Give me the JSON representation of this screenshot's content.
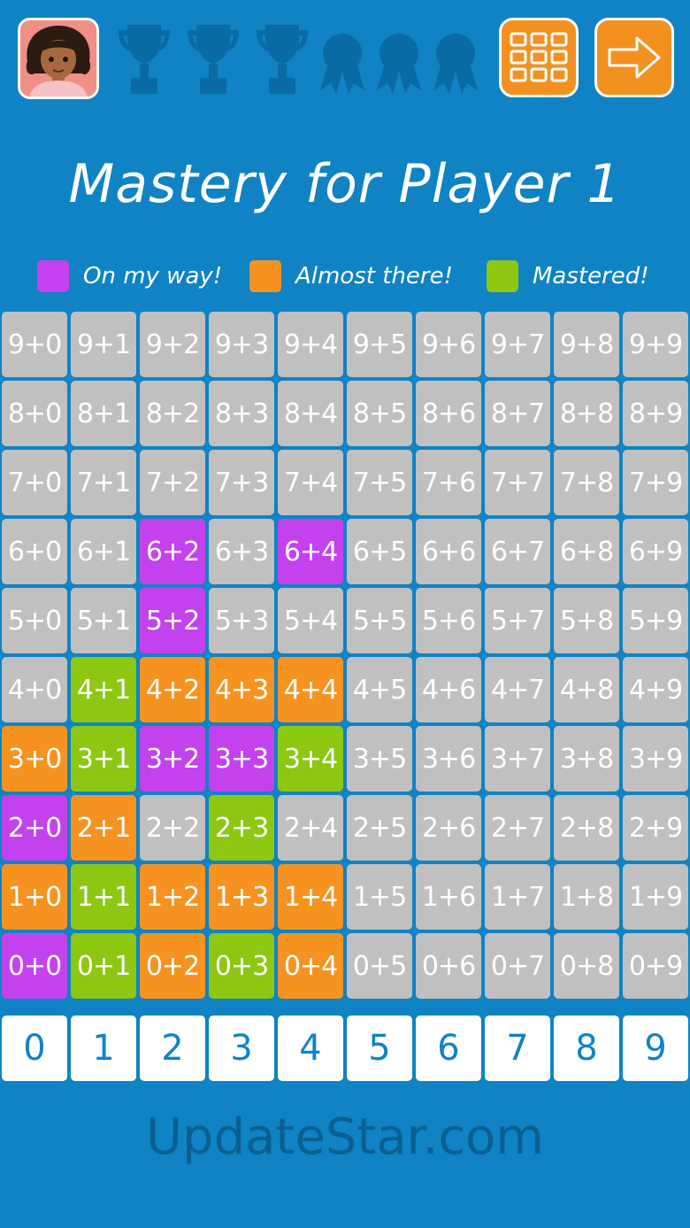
{
  "header": {
    "avatar_icon": "player-avatar-girl",
    "trophies": [
      "trophy-icon",
      "trophy-icon",
      "trophy-icon"
    ],
    "ribbons": [
      "ribbon-icon",
      "ribbon-icon",
      "ribbon-icon"
    ],
    "grid_button_icon": "grid-menu-icon",
    "next_button_icon": "arrow-right-icon"
  },
  "title": "Mastery for Player 1",
  "legend": {
    "on_my_way": {
      "label": "On my way!",
      "color": "#c342ee"
    },
    "almost_there": {
      "label": "Almost there!",
      "color": "#f69320"
    },
    "mastered": {
      "label": "Mastered!",
      "color": "#8dc711"
    }
  },
  "colors": {
    "background": "#0f83c4",
    "not_started": "#c0c0c0",
    "number_tile": "#ffffff",
    "number_text": "#0f83c4"
  },
  "grid": {
    "rows": [
      [
        "9+0",
        "9+1",
        "9+2",
        "9+3",
        "9+4",
        "9+5",
        "9+6",
        "9+7",
        "9+8",
        "9+9"
      ],
      [
        "8+0",
        "8+1",
        "8+2",
        "8+3",
        "8+4",
        "8+5",
        "8+6",
        "8+7",
        "8+8",
        "8+9"
      ],
      [
        "7+0",
        "7+1",
        "7+2",
        "7+3",
        "7+4",
        "7+5",
        "7+6",
        "7+7",
        "7+8",
        "7+9"
      ],
      [
        "6+0",
        "6+1",
        "6+2",
        "6+3",
        "6+4",
        "6+5",
        "6+6",
        "6+7",
        "6+8",
        "6+9"
      ],
      [
        "5+0",
        "5+1",
        "5+2",
        "5+3",
        "5+4",
        "5+5",
        "5+6",
        "5+7",
        "5+8",
        "5+9"
      ],
      [
        "4+0",
        "4+1",
        "4+2",
        "4+3",
        "4+4",
        "4+5",
        "4+6",
        "4+7",
        "4+8",
        "4+9"
      ],
      [
        "3+0",
        "3+1",
        "3+2",
        "3+3",
        "3+4",
        "3+5",
        "3+6",
        "3+7",
        "3+8",
        "3+9"
      ],
      [
        "2+0",
        "2+1",
        "2+2",
        "2+3",
        "2+4",
        "2+5",
        "2+6",
        "2+7",
        "2+8",
        "2+9"
      ],
      [
        "1+0",
        "1+1",
        "1+2",
        "1+3",
        "1+4",
        "1+5",
        "1+6",
        "1+7",
        "1+8",
        "1+9"
      ],
      [
        "0+0",
        "0+1",
        "0+2",
        "0+3",
        "0+4",
        "0+5",
        "0+6",
        "0+7",
        "0+8",
        "0+9"
      ]
    ],
    "status": [
      [
        "none",
        "none",
        "none",
        "none",
        "none",
        "none",
        "none",
        "none",
        "none",
        "none"
      ],
      [
        "none",
        "none",
        "none",
        "none",
        "none",
        "none",
        "none",
        "none",
        "none",
        "none"
      ],
      [
        "none",
        "none",
        "none",
        "none",
        "none",
        "none",
        "none",
        "none",
        "none",
        "none"
      ],
      [
        "none",
        "none",
        "onway",
        "none",
        "onway",
        "none",
        "none",
        "none",
        "none",
        "none"
      ],
      [
        "none",
        "none",
        "onway",
        "none",
        "none",
        "none",
        "none",
        "none",
        "none",
        "none"
      ],
      [
        "none",
        "mastered",
        "almost",
        "almost",
        "almost",
        "none",
        "none",
        "none",
        "none",
        "none"
      ],
      [
        "almost",
        "mastered",
        "onway",
        "onway",
        "mastered",
        "none",
        "none",
        "none",
        "none",
        "none"
      ],
      [
        "onway",
        "almost",
        "none",
        "mastered",
        "none",
        "none",
        "none",
        "none",
        "none",
        "none"
      ],
      [
        "almost",
        "mastered",
        "almost",
        "almost",
        "almost",
        "none",
        "none",
        "none",
        "none",
        "none"
      ],
      [
        "onway",
        "mastered",
        "almost",
        "mastered",
        "almost",
        "none",
        "none",
        "none",
        "none",
        "none"
      ]
    ]
  },
  "numbers": [
    "0",
    "1",
    "2",
    "3",
    "4",
    "5",
    "6",
    "7",
    "8",
    "9"
  ],
  "watermark": "UpdateStar.com"
}
